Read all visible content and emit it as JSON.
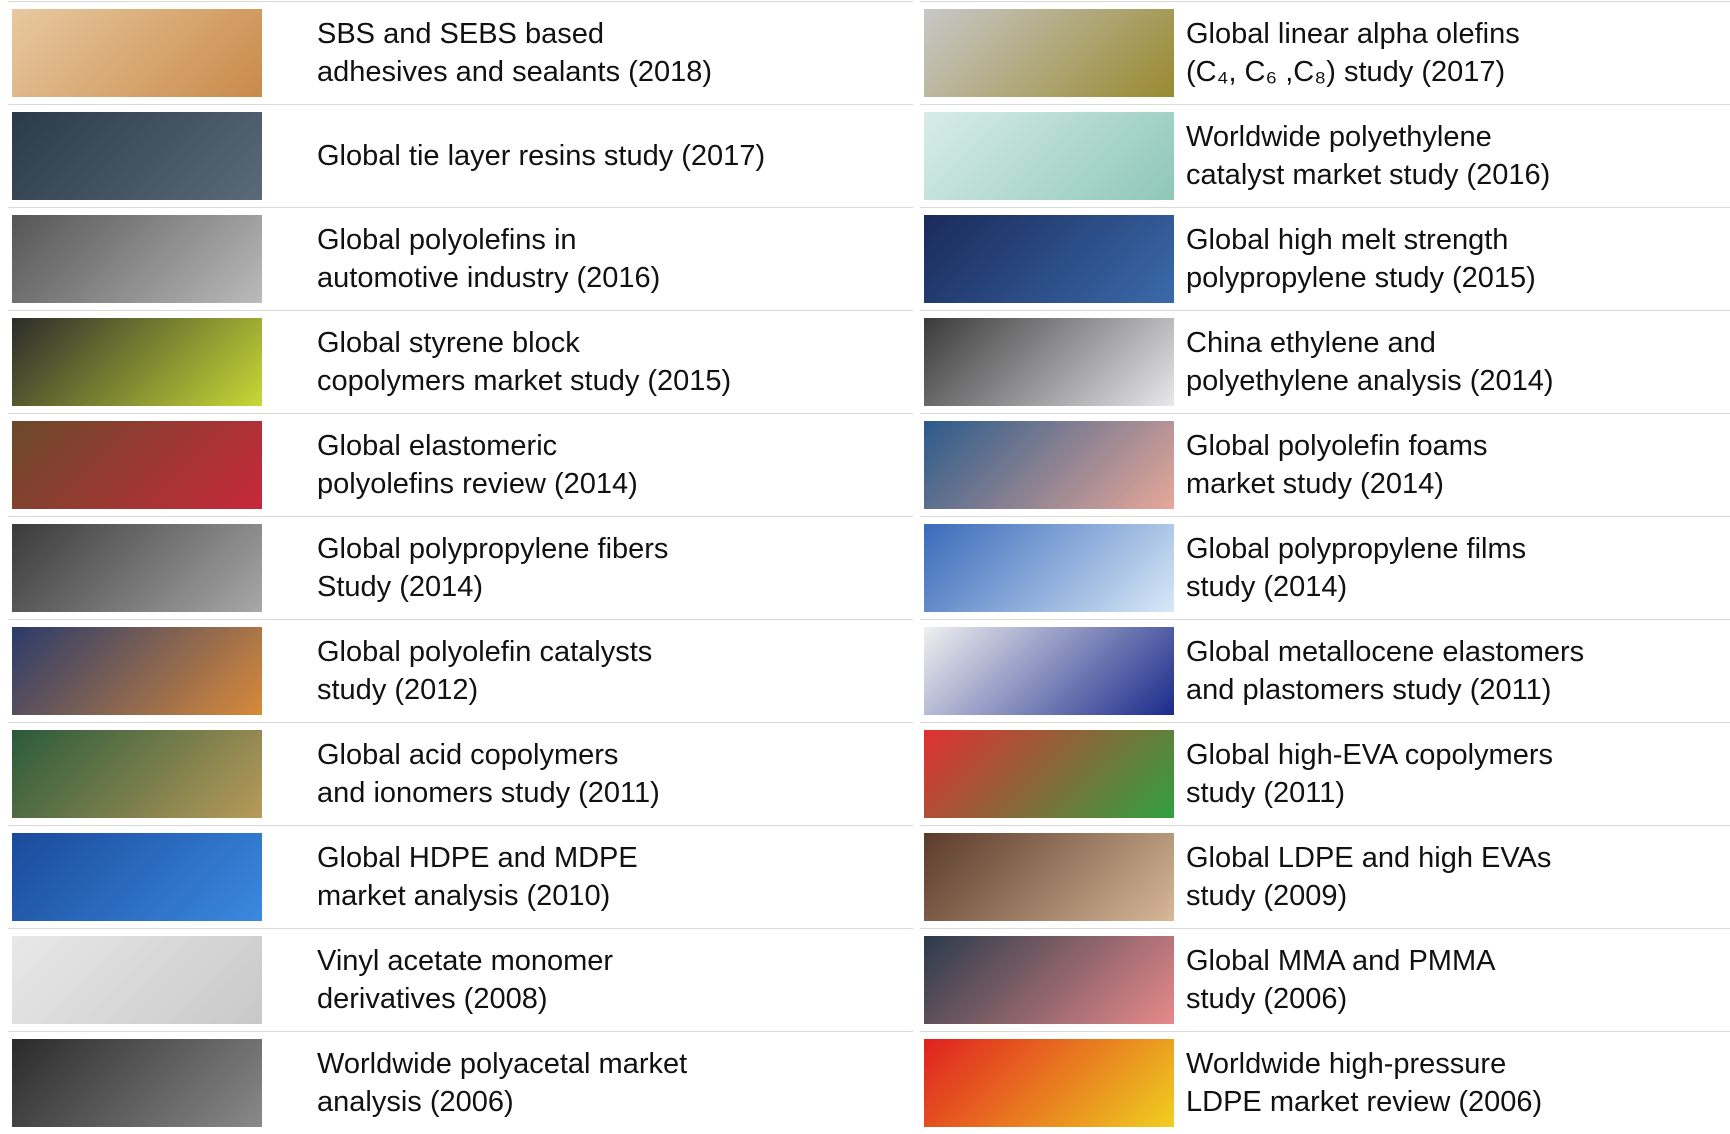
{
  "rows": [
    {
      "left": {
        "lines": [
          "SBS and SEBS based",
          "adhesives and sealants (2018)"
        ]
      },
      "right": {
        "lines": [
          "Global linear alpha olefins",
          "(C₄, C₆ ,C₈) study (2017)"
        ]
      }
    },
    {
      "left": {
        "lines": [
          "Global tie layer resins study (2017)"
        ]
      },
      "right": {
        "lines": [
          "Worldwide polyethylene",
          "catalyst market study (2016)"
        ]
      }
    },
    {
      "left": {
        "lines": [
          "Global polyolefins in",
          "automotive industry (2016)"
        ]
      },
      "right": {
        "lines": [
          "Global high melt strength",
          "polypropylene study (2015)"
        ]
      }
    },
    {
      "left": {
        "lines": [
          "Global styrene block",
          "copolymers market study (2015)"
        ]
      },
      "right": {
        "lines": [
          "China ethylene and",
          "polyethylene analysis (2014)"
        ]
      }
    },
    {
      "left": {
        "lines": [
          "Global elastomeric",
          "polyolefins review (2014)"
        ]
      },
      "right": {
        "lines": [
          "Global polyolefin foams",
          "market study (2014)"
        ]
      }
    },
    {
      "left": {
        "lines": [
          "Global polypropylene fibers",
          "Study (2014)"
        ]
      },
      "right": {
        "lines": [
          "Global polypropylene films",
          "study (2014)"
        ]
      }
    },
    {
      "left": {
        "lines": [
          "Global polyolefin catalysts",
          "study (2012)"
        ]
      },
      "right": {
        "lines": [
          "Global metallocene elastomers",
          "and plastomers study (2011)"
        ]
      }
    },
    {
      "left": {
        "lines": [
          "Global acid copolymers",
          "and ionomers study (2011)"
        ]
      },
      "right": {
        "lines": [
          "Global high-EVA copolymers",
          "study (2011)"
        ]
      }
    },
    {
      "left": {
        "lines": [
          "Global HDPE and MDPE",
          "market analysis (2010)"
        ]
      },
      "right": {
        "lines": [
          "Global LDPE and high EVAs",
          "study (2009)"
        ]
      }
    },
    {
      "left": {
        "lines": [
          "Vinyl acetate monomer",
          "derivatives (2008)"
        ]
      },
      "right": {
        "lines": [
          "Global MMA and PMMA",
          "study (2006)"
        ]
      }
    },
    {
      "left": {
        "lines": [
          "Worldwide polyacetal market",
          "analysis (2006)"
        ]
      },
      "right": {
        "lines": [
          "Worldwide high-pressure",
          "LDPE market review (2006)"
        ]
      }
    }
  ]
}
